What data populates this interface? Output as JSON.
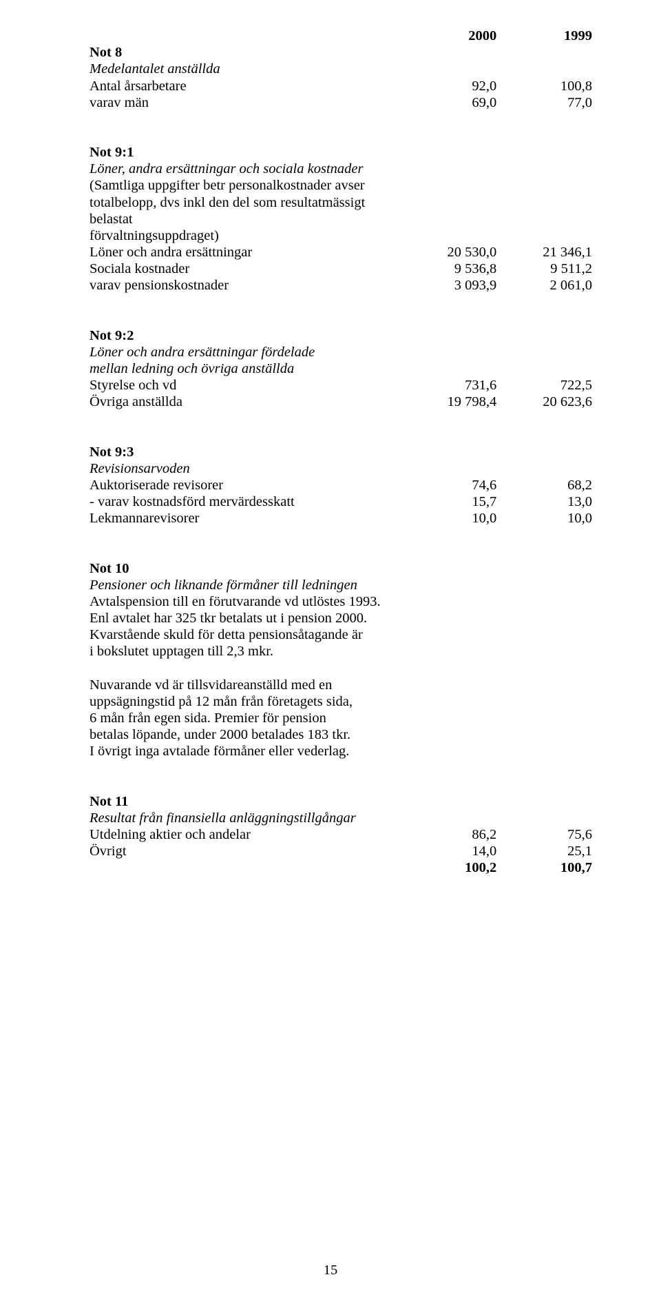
{
  "header": {
    "year1": "2000",
    "year2": "1999"
  },
  "not8": {
    "title": "Not 8",
    "subtitle": "Medelantalet anställda",
    "rows": [
      {
        "label": "Antal årsarbetare",
        "v1": "92,0",
        "v2": "100,8"
      },
      {
        "label": "varav män",
        "v1": "69,0",
        "v2": "77,0"
      }
    ]
  },
  "not91": {
    "title": "Not 9:1",
    "subtitle": "Löner, andra ersättningar och sociala kostnader",
    "desc1": "(Samtliga uppgifter betr personalkostnader avser",
    "desc2": "totalbelopp, dvs inkl den del som resultatmässigt belastat",
    "desc3": "förvaltningsuppdraget)",
    "rows": [
      {
        "label": "Löner och andra ersättningar",
        "v1": "20 530,0",
        "v2": "21 346,1"
      },
      {
        "label": "Sociala kostnader",
        "v1": "9 536,8",
        "v2": "9 511,2"
      },
      {
        "label": "varav pensionskostnader",
        "v1": "3 093,9",
        "v2": "2 061,0"
      }
    ]
  },
  "not92": {
    "title": "Not 9:2",
    "subtitle1": "Löner och andra ersättningar fördelade",
    "subtitle2": "mellan ledning och övriga anställda",
    "rows": [
      {
        "label": "Styrelse och vd",
        "v1": "731,6",
        "v2": "722,5"
      },
      {
        "label": "Övriga anställda",
        "v1": "19 798,4",
        "v2": "20 623,6"
      }
    ]
  },
  "not93": {
    "title": "Not 9:3",
    "subtitle": "Revisionsarvoden",
    "rows": [
      {
        "label": "Auktoriserade revisorer",
        "v1": "74,6",
        "v2": "68,2"
      },
      {
        "label": " - varav kostnadsförd mervärdesskatt",
        "v1": "15,7",
        "v2": "13,0"
      },
      {
        "label": "Lekmannarevisorer",
        "v1": "10,0",
        "v2": "10,0"
      }
    ]
  },
  "not10": {
    "title": "Not 10",
    "subtitle": "Pensioner och liknande förmåner till ledningen",
    "p1l1": "Avtalspension till en förutvarande vd utlöstes 1993.",
    "p1l2": "Enl avtalet har 325 tkr betalats ut i pension 2000.",
    "p1l3": "Kvarstående skuld för detta pensionsåtagande är",
    "p1l4": "i bokslutet upptagen till 2,3 mkr.",
    "p2l1": "Nuvarande vd är tillsvidareanställd med en",
    "p2l2": "uppsägningstid på 12 mån från företagets sida,",
    "p2l3": "6 mån från egen sida. Premier för pension",
    "p2l4": "betalas löpande, under 2000 betalades 183 tkr.",
    "p2l5": "I övrigt inga avtalade förmåner eller vederlag."
  },
  "not11": {
    "title": "Not 11",
    "subtitle": "Resultat från finansiella anläggningstillgångar",
    "rows": [
      {
        "label": "Utdelning aktier och andelar",
        "v1": "86,2",
        "v2": "75,6"
      },
      {
        "label": "Övrigt",
        "v1": "14,0",
        "v2": "25,1"
      }
    ],
    "total": {
      "v1": "100,2",
      "v2": "100,7"
    }
  },
  "pageNumber": "15"
}
